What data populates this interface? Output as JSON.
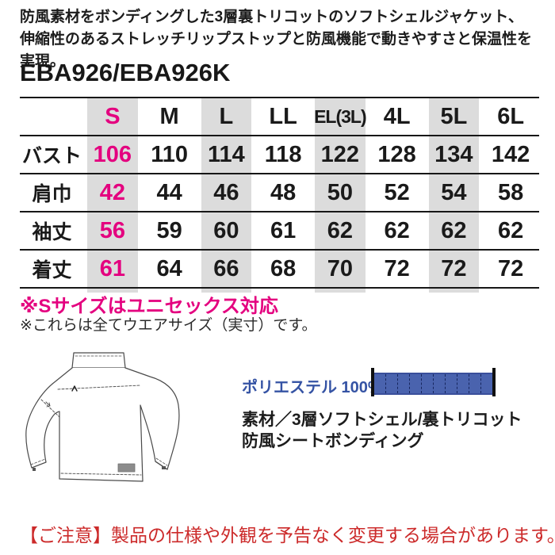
{
  "colors": {
    "pink": "#e4007f",
    "red": "#cc2a2a",
    "blue_text": "#3553a4",
    "bar_fill": "#4a63ae",
    "band_gray": "#dcdcdc"
  },
  "header": {
    "description_line1": "防風素材をボンディングした3層裏トリコットのソフトシェルジャケット、",
    "description_line2": "伸縮性のあるストレッチリップストップと防風機能で動きやすさと保温性を実現。",
    "product_code": "EBA926/EBA926K"
  },
  "size_table": {
    "columns": [
      "S",
      "M",
      "L",
      "LL",
      "EL(3L)",
      "4L",
      "5L",
      "6L"
    ],
    "highlight_column_index": 0,
    "shaded_column_indexes": [
      0,
      2,
      4,
      6
    ],
    "rows": [
      {
        "label": "バスト",
        "values": [
          "106",
          "110",
          "114",
          "118",
          "122",
          "128",
          "134",
          "142"
        ]
      },
      {
        "label": "肩巾",
        "values": [
          "42",
          "44",
          "46",
          "48",
          "50",
          "52",
          "54",
          "58"
        ]
      },
      {
        "label": "袖丈",
        "values": [
          "56",
          "59",
          "60",
          "61",
          "62",
          "62",
          "62",
          "62"
        ]
      },
      {
        "label": "着丈",
        "values": [
          "61",
          "64",
          "66",
          "68",
          "70",
          "72",
          "72",
          "72"
        ]
      }
    ]
  },
  "notes": {
    "unisex_note": "※Sサイズはユニセックス対応",
    "size_note": "※これらは全てウエアサイズ（実寸）です。"
  },
  "material": {
    "composition_label": "ポリエステル 100%",
    "composition_percent": 100,
    "bar_segments": 10,
    "description_line1": "素材／3層ソフトシェル/裏トリコット",
    "description_line2": "防風シートボンディング"
  },
  "footer": {
    "caution_note": "【ご注意】製品の仕様や外観を予告なく変更する場合があります。"
  }
}
